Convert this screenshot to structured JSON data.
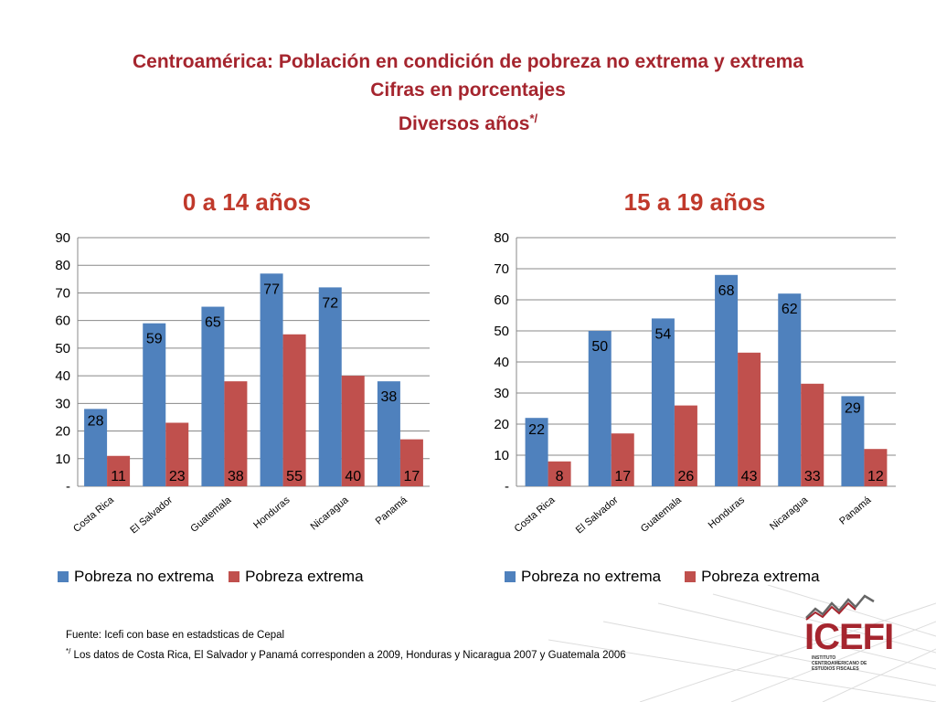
{
  "header": {
    "title_line1": "Centroamérica: Población en condición de pobreza no extrema y extrema",
    "title_line2": "Cifras en porcentajes",
    "title_line3": "Diversos años",
    "title_line3_sup": "*/"
  },
  "colors": {
    "title": "#a5252e",
    "chart_title": "#c0392b",
    "no_extrema": "#4f81bd",
    "extrema": "#c0504d",
    "grid": "#888888"
  },
  "chart_data": [
    {
      "type": "bar",
      "title": "0 a 14 años",
      "categories": [
        "Costa Rica",
        "El Salvador",
        "Guatemala",
        "Honduras",
        "Nicaragua",
        "Panamá"
      ],
      "series": [
        {
          "name": "Pobreza no extrema",
          "values": [
            28,
            59,
            65,
            77,
            72,
            38
          ]
        },
        {
          "name": "Pobreza extrema",
          "values": [
            11,
            23,
            38,
            55,
            40,
            17
          ]
        }
      ],
      "ylim": [
        0,
        90
      ],
      "yticks": [
        "-",
        "10",
        "20",
        "30",
        "40",
        "50",
        "60",
        "70",
        "80",
        "90"
      ],
      "legend": "bottom"
    },
    {
      "type": "bar",
      "title": "15 a 19 años",
      "categories": [
        "Costa Rica",
        "El Salvador",
        "Guatemala",
        "Honduras",
        "Nicaragua",
        "Panamá"
      ],
      "series": [
        {
          "name": "Pobreza no extrema",
          "values": [
            22,
            50,
            54,
            68,
            62,
            29
          ]
        },
        {
          "name": "Pobreza extrema",
          "values": [
            8,
            17,
            26,
            43,
            33,
            12
          ]
        }
      ],
      "ylim": [
        0,
        80
      ],
      "yticks": [
        "-",
        "10",
        "20",
        "30",
        "40",
        "50",
        "60",
        "70",
        "80"
      ],
      "legend": "bottom"
    }
  ],
  "footer": {
    "source": "Fuente:  Icefi con base en estadsticas de Cepal",
    "note_sup": "*/",
    "note": "Los datos de Costa Rica, El Salvador y Panamá corresponden a 2009, Honduras y Nicaragua 2007 y Guatemala 2006"
  },
  "logo": {
    "name": "ICEFI",
    "subtitle": "INSTITUTO CENTROAMERICANO DE ESTUDIOS FISCALES"
  }
}
